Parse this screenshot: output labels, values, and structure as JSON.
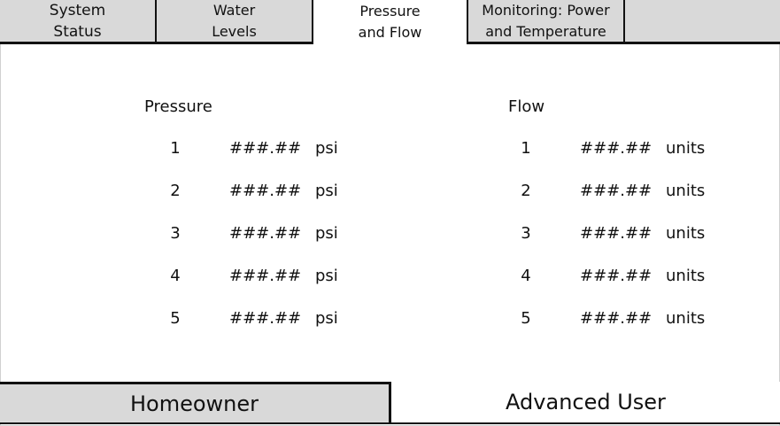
{
  "tabs": [
    {
      "label": "System\nStatus"
    },
    {
      "label": "Water\nLevels"
    },
    {
      "label": "Pressure\nand Flow"
    },
    {
      "label": "Monitoring: Power\nand Temperature"
    },
    {
      "label": ""
    }
  ],
  "pressure": {
    "title": "Pressure",
    "rows": [
      {
        "index": "1",
        "value": "###.##",
        "unit": "psi"
      },
      {
        "index": "2",
        "value": "###.##",
        "unit": "psi"
      },
      {
        "index": "3",
        "value": "###.##",
        "unit": "psi"
      },
      {
        "index": "4",
        "value": "###.##",
        "unit": "psi"
      },
      {
        "index": "5",
        "value": "###.##",
        "unit": "psi"
      }
    ]
  },
  "flow": {
    "title": "Flow",
    "rows": [
      {
        "index": "1",
        "value": "###.##",
        "unit": "units"
      },
      {
        "index": "2",
        "value": "###.##",
        "unit": "units"
      },
      {
        "index": "3",
        "value": "###.##",
        "unit": "units"
      },
      {
        "index": "4",
        "value": "###.##",
        "unit": "units"
      },
      {
        "index": "5",
        "value": "###.##",
        "unit": "units"
      }
    ]
  },
  "modes": {
    "homeowner": "Homeowner",
    "advanced": "Advanced User"
  }
}
